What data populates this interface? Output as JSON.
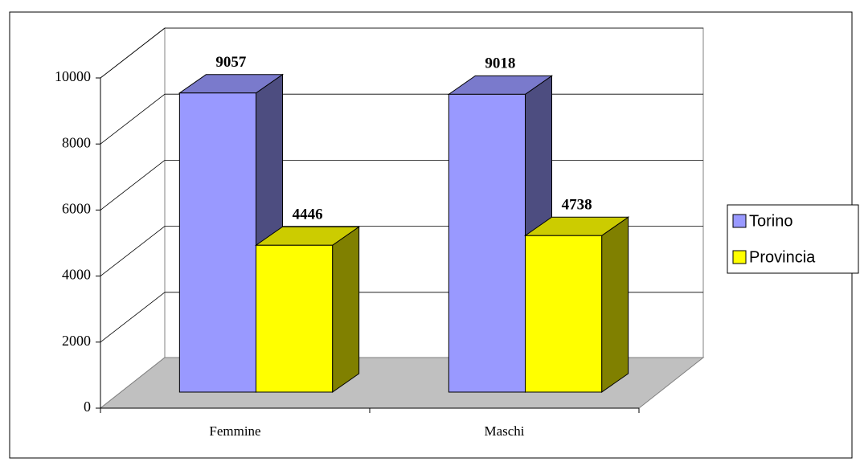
{
  "chart_data": {
    "type": "bar3d",
    "categories": [
      "Femmine",
      "Maschi"
    ],
    "series": [
      {
        "name": "Torino",
        "color": "#9999ff",
        "values": [
          9057,
          9018
        ]
      },
      {
        "name": "Provincia",
        "color": "#ffff00",
        "values": [
          4446,
          4738
        ]
      }
    ],
    "ylim": [
      0,
      10000
    ],
    "yticks": [
      0,
      2000,
      4000,
      6000,
      8000,
      10000
    ],
    "grid": true,
    "legend": "right"
  }
}
